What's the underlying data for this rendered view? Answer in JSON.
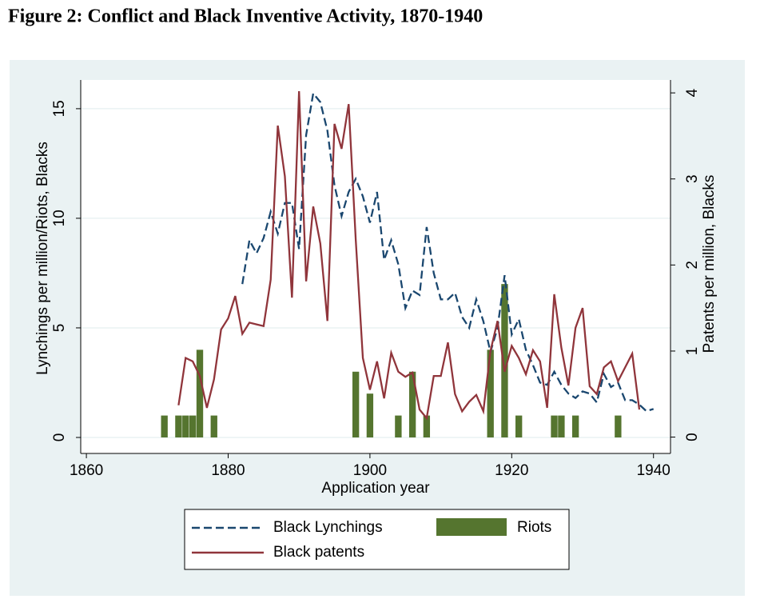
{
  "chart_data": {
    "type": "line",
    "title": "Figure 2: Conflict and Black Inventive Activity, 1870-1940",
    "x_label": "Application year",
    "y_label": "Lynchings per million/Riots, Blacks",
    "y2_label": "Patents per million, Blacks",
    "x": [
      1871,
      1872,
      1873,
      1874,
      1875,
      1876,
      1877,
      1878,
      1879,
      1880,
      1881,
      1882,
      1883,
      1884,
      1885,
      1886,
      1887,
      1888,
      1889,
      1890,
      1891,
      1892,
      1893,
      1894,
      1895,
      1896,
      1897,
      1898,
      1899,
      1900,
      1901,
      1902,
      1903,
      1904,
      1905,
      1906,
      1907,
      1908,
      1909,
      1910,
      1911,
      1912,
      1913,
      1914,
      1915,
      1916,
      1917,
      1918,
      1919,
      1920,
      1921,
      1922,
      1923,
      1924,
      1925,
      1926,
      1927,
      1928,
      1929,
      1930,
      1931,
      1932,
      1933,
      1934,
      1935,
      1936,
      1937,
      1938,
      1939,
      1940
    ],
    "series": [
      {
        "name": "Black Lynchings",
        "type": "line",
        "dashed": true,
        "color": "#1a476f",
        "values": [
          null,
          null,
          null,
          null,
          null,
          null,
          null,
          null,
          null,
          null,
          null,
          7.0,
          9.0,
          8.4,
          9.1,
          10.3,
          9.3,
          10.7,
          10.7,
          8.6,
          13.8,
          15.7,
          15.3,
          14.0,
          11.5,
          10.1,
          11.2,
          11.8,
          11.0,
          9.8,
          11.2,
          8.1,
          9.0,
          7.9,
          5.9,
          6.7,
          6.5,
          9.6,
          7.5,
          6.3,
          6.3,
          6.6,
          5.5,
          5.0,
          6.3,
          5.3,
          3.9,
          5.0,
          7.4,
          4.7,
          5.4,
          4.0,
          3.3,
          2.5,
          2.4,
          3.0,
          2.4,
          2.0,
          1.8,
          2.1,
          2.0,
          1.6,
          2.9,
          2.3,
          2.5,
          1.7,
          1.7,
          1.5,
          1.2,
          1.3
        ]
      },
      {
        "name": "Black patents",
        "type": "line",
        "dashed": false,
        "color": "#90353b",
        "axis": "y2",
        "values": [
          null,
          null,
          0.37,
          0.92,
          0.88,
          0.71,
          0.34,
          0.67,
          1.25,
          1.38,
          1.64,
          1.2,
          1.33,
          1.31,
          1.29,
          1.83,
          3.62,
          3.03,
          1.62,
          4.02,
          1.81,
          2.68,
          2.25,
          1.35,
          3.64,
          3.35,
          3.87,
          2.29,
          0.92,
          0.55,
          0.88,
          0.45,
          0.98,
          0.76,
          0.7,
          0.75,
          0.32,
          0.22,
          0.71,
          0.71,
          1.1,
          0.5,
          0.3,
          0.41,
          0.49,
          0.3,
          1.0,
          1.35,
          0.76,
          1.06,
          0.92,
          0.73,
          1.01,
          0.88,
          0.34,
          1.66,
          1.04,
          0.6,
          1.27,
          1.5,
          0.59,
          0.5,
          0.81,
          0.88,
          0.65,
          0.81,
          0.97,
          0.32,
          null,
          null
        ]
      },
      {
        "name": "Riots",
        "type": "bar",
        "color": "#55752f",
        "values": [
          1,
          0,
          1,
          1,
          1,
          4,
          0,
          1,
          0,
          0,
          0,
          0,
          0,
          0,
          0,
          0,
          0,
          0,
          0,
          0,
          0,
          0,
          0,
          0,
          0,
          0,
          0,
          3,
          0,
          2,
          0,
          0,
          0,
          1,
          0,
          3,
          0,
          1,
          0,
          0,
          0,
          0,
          0,
          0,
          0,
          0,
          4,
          0,
          7,
          0,
          1,
          0,
          0,
          0,
          0,
          1,
          1,
          0,
          1,
          0,
          0,
          0,
          0,
          0,
          1,
          0,
          0,
          0,
          0,
          0
        ]
      }
    ],
    "xlim": [
      1859.2,
      1942.4
    ],
    "xticks": [
      1860,
      1880,
      1900,
      1920,
      1940
    ],
    "ylim": [
      -0.73,
      16.31
    ],
    "yticks": [
      0,
      5,
      10,
      15
    ],
    "y2lim": [
      -0.19,
      4.15
    ],
    "y2ticks": [
      0,
      1,
      2,
      3,
      4
    ],
    "grid": true
  }
}
